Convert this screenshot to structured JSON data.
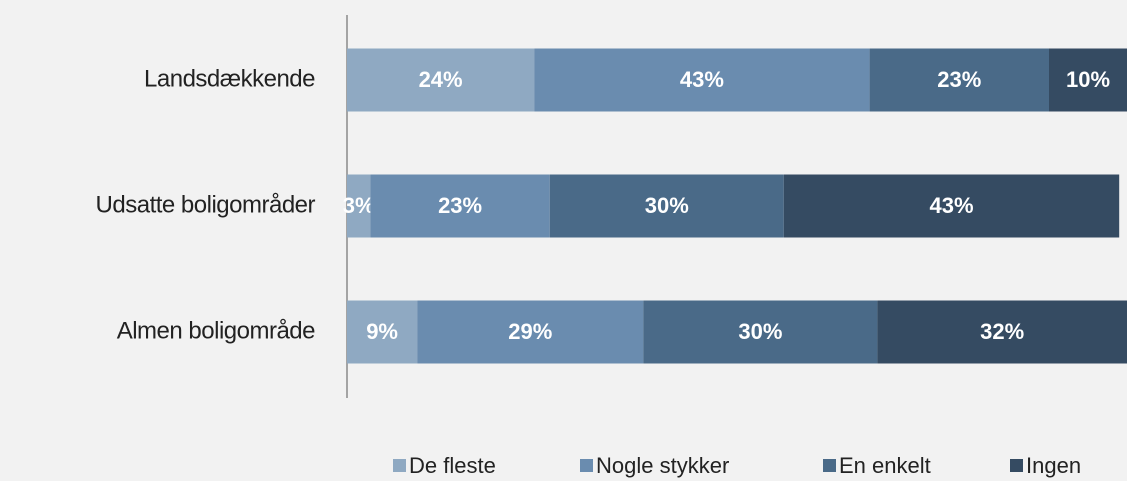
{
  "chart_data": {
    "type": "stacked-bar-horizontal",
    "categories": [
      "Landsdækkende",
      "Udsatte boligområder",
      "Almen boligområde"
    ],
    "series": [
      {
        "name": "De fleste",
        "color": "#8fa9c2",
        "values": [
          24,
          3,
          9
        ],
        "value_labels": [
          "24%",
          "3%",
          "9%"
        ]
      },
      {
        "name": "Nogle stykker",
        "color": "#6a8caf",
        "values": [
          43,
          23,
          29
        ],
        "value_labels": [
          "43%",
          "23%",
          "29%"
        ]
      },
      {
        "name": "En enkelt",
        "color": "#4a6a88",
        "values": [
          23,
          30,
          30
        ],
        "value_labels": [
          "23%",
          "30%",
          "30%"
        ]
      },
      {
        "name": "Ingen",
        "color": "#354b62",
        "values": [
          10,
          43,
          32
        ],
        "value_labels": [
          "10%",
          "43%",
          "32%"
        ]
      }
    ],
    "xlim": [
      0,
      100
    ],
    "legend": "bottom"
  }
}
